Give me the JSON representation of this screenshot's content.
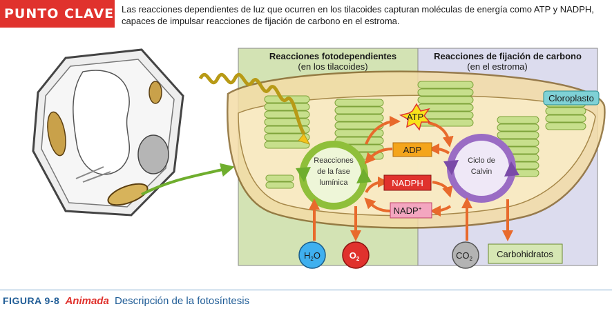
{
  "key": {
    "badge": "PUNTO CLAVE",
    "text": "Las reacciones dependientes de luz que ocurren en los tilacoides capturan moléculas de energía como ATP y NADPH, capaces de impulsar reacciones de fijación de carbono en el estroma."
  },
  "panels": {
    "light": {
      "title": "Reacciones fotodependientes",
      "subtitle": "(en los tilacoides)"
    },
    "carbon": {
      "title": "Reacciones de fijación de carbono",
      "subtitle": "(en el estroma)"
    }
  },
  "labels": {
    "chloroplast": "Cloroplasto",
    "light_cycle": [
      "Reacciones",
      "de la fase",
      "lumínica"
    ],
    "calvin_cycle": [
      "Ciclo de",
      "Calvin"
    ],
    "atp": "ATP",
    "adp": "ADP",
    "nadph": "NADPH",
    "nadp": "NADP",
    "nadp_sup": "+",
    "h2o": "H",
    "h2o_sub": "2",
    "h2o_end": "O",
    "o2": "O",
    "o2_sub": "2",
    "co2": "CO",
    "co2_sub": "2",
    "carbohydrates": "Carbohidratos"
  },
  "caption": {
    "figure": "FIGURA 9-8",
    "animated": "Animada",
    "title": "Descripción de la fotosíntesis"
  },
  "colors": {
    "red": "#e0322d",
    "light_panel": "#d3e3b4",
    "carbon_panel": "#dcdcee",
    "green_cycle": "#8fbf3a",
    "purple_cycle": "#9a6cc4",
    "arrow": "#e86a2c",
    "blue": "#1f5c96"
  }
}
